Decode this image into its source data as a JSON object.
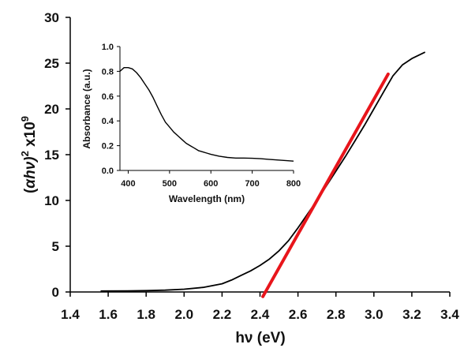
{
  "chart_data": [
    {
      "type": "line",
      "xlabel": "hν (eV)",
      "ylabel": "(αhν)² x10⁹",
      "ylabel_parts": {
        "pre": "(",
        "alpha": "α",
        "mid": "hν)",
        "sup1": "2",
        "mid2": " x10",
        "sup2": "9"
      },
      "xlim": [
        1.4,
        3.4
      ],
      "ylim": [
        0,
        30
      ],
      "xticks": [
        "1.4",
        "1.6",
        "1.8",
        "2.0",
        "2.2",
        "2.4",
        "2.6",
        "2.8",
        "3.0",
        "3.2",
        "3.4"
      ],
      "yticks": [
        "0",
        "5",
        "10",
        "15",
        "20",
        "25",
        "30"
      ],
      "series": [
        {
          "color": "#000000",
          "x": [
            1.56,
            1.7,
            1.8,
            1.9,
            2.0,
            2.1,
            2.2,
            2.25,
            2.3,
            2.35,
            2.4,
            2.45,
            2.5,
            2.55,
            2.6,
            2.65,
            2.7,
            2.75,
            2.8,
            2.85,
            2.9,
            2.95,
            3.0,
            3.05,
            3.1,
            3.15,
            3.2,
            3.27
          ],
          "y": [
            0.1,
            0.12,
            0.15,
            0.2,
            0.3,
            0.5,
            0.9,
            1.3,
            1.8,
            2.3,
            2.9,
            3.6,
            4.5,
            5.6,
            7.0,
            8.5,
            10.0,
            11.6,
            13.2,
            14.8,
            16.5,
            18.2,
            20.0,
            21.8,
            23.6,
            24.8,
            25.5,
            26.2
          ]
        }
      ],
      "fit_line": {
        "color": "#e8151b",
        "x": [
          2.415,
          3.075
        ],
        "y": [
          -0.5,
          23.8
        ]
      }
    },
    {
      "type": "line",
      "xlabel": "Wavelength (nm)",
      "ylabel": "Absorbance (a.u.)",
      "xlim": [
        380,
        800
      ],
      "ylim": [
        0,
        1.0
      ],
      "xticks": [
        "400",
        "500",
        "600",
        "700",
        "800"
      ],
      "yticks": [
        "0.0",
        "0.2",
        "0.4",
        "0.6",
        "0.8",
        "1.0"
      ],
      "series": [
        {
          "color": "#000000",
          "x": [
            380,
            390,
            400,
            410,
            420,
            430,
            440,
            450,
            460,
            470,
            480,
            490,
            500,
            510,
            520,
            530,
            540,
            550,
            560,
            570,
            580,
            590,
            600,
            620,
            640,
            660,
            680,
            700,
            720,
            740,
            760,
            780,
            800
          ],
          "y": [
            0.8,
            0.83,
            0.83,
            0.82,
            0.79,
            0.75,
            0.7,
            0.65,
            0.59,
            0.52,
            0.45,
            0.39,
            0.35,
            0.31,
            0.28,
            0.25,
            0.22,
            0.2,
            0.18,
            0.16,
            0.15,
            0.14,
            0.13,
            0.115,
            0.105,
            0.1,
            0.1,
            0.098,
            0.095,
            0.09,
            0.085,
            0.08,
            0.075
          ]
        }
      ]
    }
  ]
}
